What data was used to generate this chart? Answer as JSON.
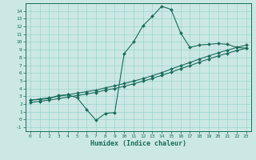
{
  "xlabel": "Humidex (Indice chaleur)",
  "bg_color": "#cce8e4",
  "grid_color": "#99d4cc",
  "line_color": "#1a6b5a",
  "xlim": [
    -0.5,
    23.5
  ],
  "ylim": [
    -1.5,
    15.0
  ],
  "xticks": [
    0,
    1,
    2,
    3,
    4,
    5,
    6,
    7,
    8,
    9,
    10,
    11,
    12,
    13,
    14,
    15,
    16,
    17,
    18,
    19,
    20,
    21,
    22,
    23
  ],
  "yticks": [
    -1,
    0,
    1,
    2,
    3,
    4,
    5,
    6,
    7,
    8,
    9,
    10,
    11,
    12,
    13,
    14
  ],
  "series1_x": [
    0,
    1,
    2,
    3,
    4,
    5,
    6,
    7,
    8,
    9,
    10,
    11,
    12,
    13,
    14,
    15,
    16,
    17,
    18,
    19,
    20,
    21,
    22,
    23
  ],
  "series1_y": [
    2.5,
    2.6,
    2.7,
    3.1,
    3.2,
    2.8,
    1.3,
    -0.1,
    0.8,
    0.9,
    8.5,
    10.0,
    12.1,
    13.3,
    14.6,
    14.2,
    11.2,
    9.3,
    9.6,
    9.7,
    9.8,
    9.7,
    9.3,
    9.2
  ],
  "series2_x": [
    0,
    1,
    2,
    3,
    4,
    5,
    6,
    7,
    8,
    9,
    10,
    11,
    12,
    13,
    14,
    15,
    16,
    17,
    18,
    19,
    20,
    21,
    22,
    23
  ],
  "series2_y": [
    2.5,
    2.65,
    2.8,
    3.0,
    3.2,
    3.4,
    3.6,
    3.8,
    4.1,
    4.35,
    4.65,
    4.95,
    5.3,
    5.65,
    6.05,
    6.5,
    6.95,
    7.35,
    7.8,
    8.2,
    8.6,
    8.95,
    9.3,
    9.6
  ],
  "series3_x": [
    0,
    1,
    2,
    3,
    4,
    5,
    6,
    7,
    8,
    9,
    10,
    11,
    12,
    13,
    14,
    15,
    16,
    17,
    18,
    19,
    20,
    21,
    22,
    23
  ],
  "series3_y": [
    2.2,
    2.35,
    2.5,
    2.7,
    2.9,
    3.1,
    3.3,
    3.5,
    3.8,
    4.0,
    4.3,
    4.6,
    4.95,
    5.3,
    5.7,
    6.1,
    6.55,
    6.95,
    7.4,
    7.8,
    8.2,
    8.55,
    8.9,
    9.2
  ],
  "markersize": 2.0,
  "linewidth": 0.8
}
